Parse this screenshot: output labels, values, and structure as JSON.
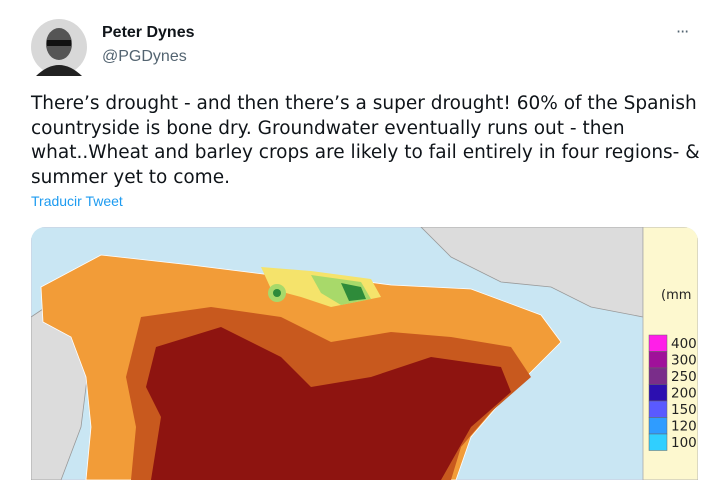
{
  "tweet": {
    "author": {
      "name": "Peter Dynes",
      "handle": "@PGDynes"
    },
    "menu": "···",
    "text_lines": [
      "There’s drought - and then there’s a super drought! 60% of the Spanish",
      "countryside is bone dry. Groundwater eventually runs out - then",
      "what..Wheat and barley crops are likely to fail entirely in four regions- &",
      "summer yet to come."
    ],
    "translate": "Traducir Tweet",
    "image": {
      "legend_title": "(mm",
      "legend_labels": [
        "400",
        "300",
        "250",
        "200",
        "150",
        "120",
        "100"
      ]
    }
  }
}
